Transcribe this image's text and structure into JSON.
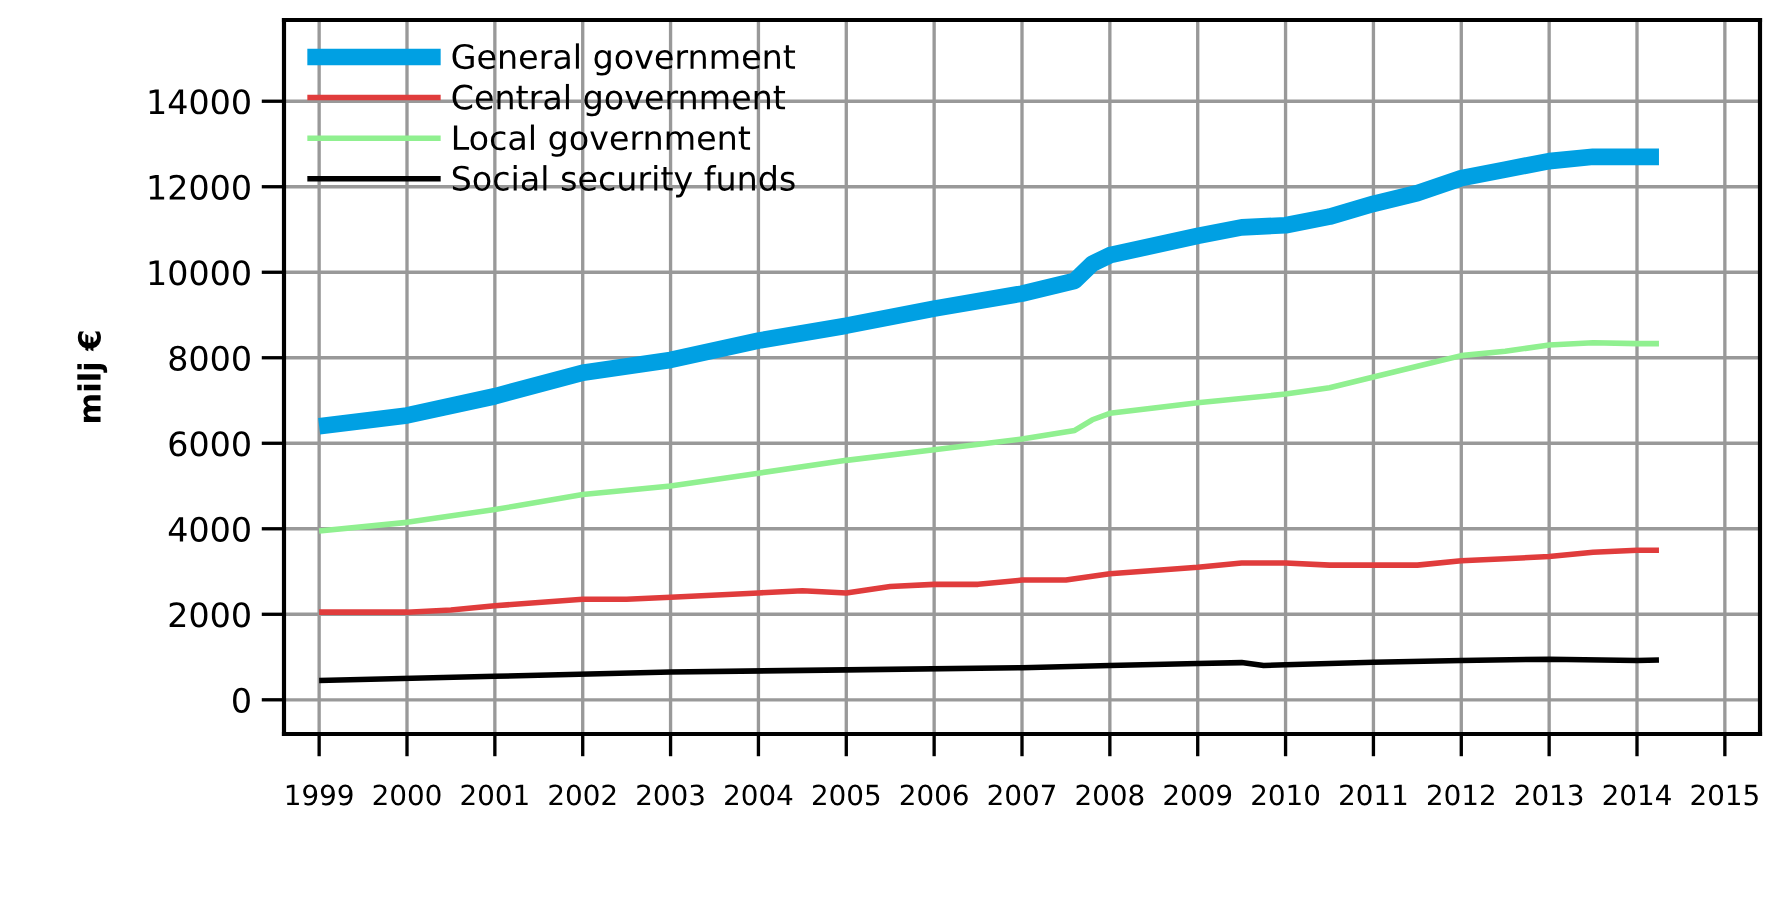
{
  "chart_data": {
    "type": "line",
    "ylabel": "milj €",
    "series": [
      {
        "name": "General government",
        "color": "#00a0e3",
        "x": [
          1999,
          2000,
          2001,
          2002,
          2003,
          2004,
          2005,
          2006,
          2007,
          2007.6,
          2007.8,
          2008,
          2009,
          2009.5,
          2010,
          2010.5,
          2011,
          2011.5,
          2012,
          2012.5,
          2013,
          2013.5,
          2014,
          2014.25
        ],
        "values": [
          6400,
          6650,
          7100,
          7650,
          7950,
          8400,
          8750,
          9150,
          9500,
          9800,
          10200,
          10400,
          10850,
          11050,
          11100,
          11300,
          11600,
          11850,
          12200,
          12400,
          12600,
          12700,
          12700,
          12700
        ]
      },
      {
        "name": "Central government",
        "color": "#e03c3c",
        "x": [
          1999,
          2000,
          2000.5,
          2001,
          2002,
          2002.5,
          2003,
          2004,
          2004.5,
          2005,
          2005.5,
          2006,
          2006.5,
          2007,
          2007.5,
          2008,
          2009,
          2009.5,
          2010,
          2010.5,
          2011,
          2011.5,
          2012,
          2012.5,
          2013,
          2013.5,
          2014,
          2014.25
        ],
        "values": [
          2050,
          2050,
          2100,
          2200,
          2350,
          2350,
          2400,
          2500,
          2550,
          2500,
          2650,
          2700,
          2700,
          2800,
          2800,
          2950,
          3100,
          3200,
          3200,
          3150,
          3150,
          3150,
          3250,
          3300,
          3350,
          3450,
          3500,
          3500
        ]
      },
      {
        "name": "Local government",
        "color": "#90f090",
        "x": [
          1999,
          2000,
          2001,
          2002,
          2003,
          2004,
          2005,
          2006,
          2007,
          2007.6,
          2007.8,
          2008,
          2009,
          2010,
          2010.5,
          2011,
          2011.5,
          2012,
          2012.5,
          2013,
          2013.5,
          2014,
          2014.25
        ],
        "values": [
          3950,
          4150,
          4450,
          4800,
          5000,
          5300,
          5600,
          5850,
          6100,
          6300,
          6550,
          6700,
          6950,
          7150,
          7300,
          7550,
          7800,
          8050,
          8150,
          8300,
          8350,
          8330,
          8330
        ]
      },
      {
        "name": "Social security funds",
        "color": "#000000",
        "x": [
          1999,
          2001,
          2003,
          2005,
          2007,
          2008,
          2009,
          2009.5,
          2009.75,
          2010,
          2011,
          2012,
          2013,
          2014,
          2014.25
        ],
        "values": [
          450,
          550,
          650,
          700,
          750,
          800,
          850,
          870,
          800,
          820,
          880,
          920,
          950,
          920,
          930
        ]
      }
    ],
    "xlim": [
      1998.6,
      2015.4
    ],
    "xticks": [
      {
        "value": 1999,
        "label": "1999"
      },
      {
        "value": 2000,
        "label": "2000"
      },
      {
        "value": 2001,
        "label": "2001"
      },
      {
        "value": 2002,
        "label": "2002"
      },
      {
        "value": 2003,
        "label": "2003"
      },
      {
        "value": 2004,
        "label": "2004"
      },
      {
        "value": 2005,
        "label": "2005"
      },
      {
        "value": 2006,
        "label": "2006"
      },
      {
        "value": 2007,
        "label": "2007"
      },
      {
        "value": 2008,
        "label": "2008"
      },
      {
        "value": 2009,
        "label": "2009"
      },
      {
        "value": 2010,
        "label": "2010"
      },
      {
        "value": 2011,
        "label": "2011"
      },
      {
        "value": 2012,
        "label": "2012"
      },
      {
        "value": 2013,
        "label": "2013"
      },
      {
        "value": 2014,
        "label": "2014"
      },
      {
        "value": 2015,
        "label": "2015"
      }
    ],
    "ylim": [
      -800,
      15900
    ],
    "yticks": [
      0,
      2000,
      4000,
      6000,
      8000,
      10000,
      12000,
      14000
    ],
    "grid": true,
    "legend": "top left",
    "marker": "none",
    "line_style": "solid"
  }
}
